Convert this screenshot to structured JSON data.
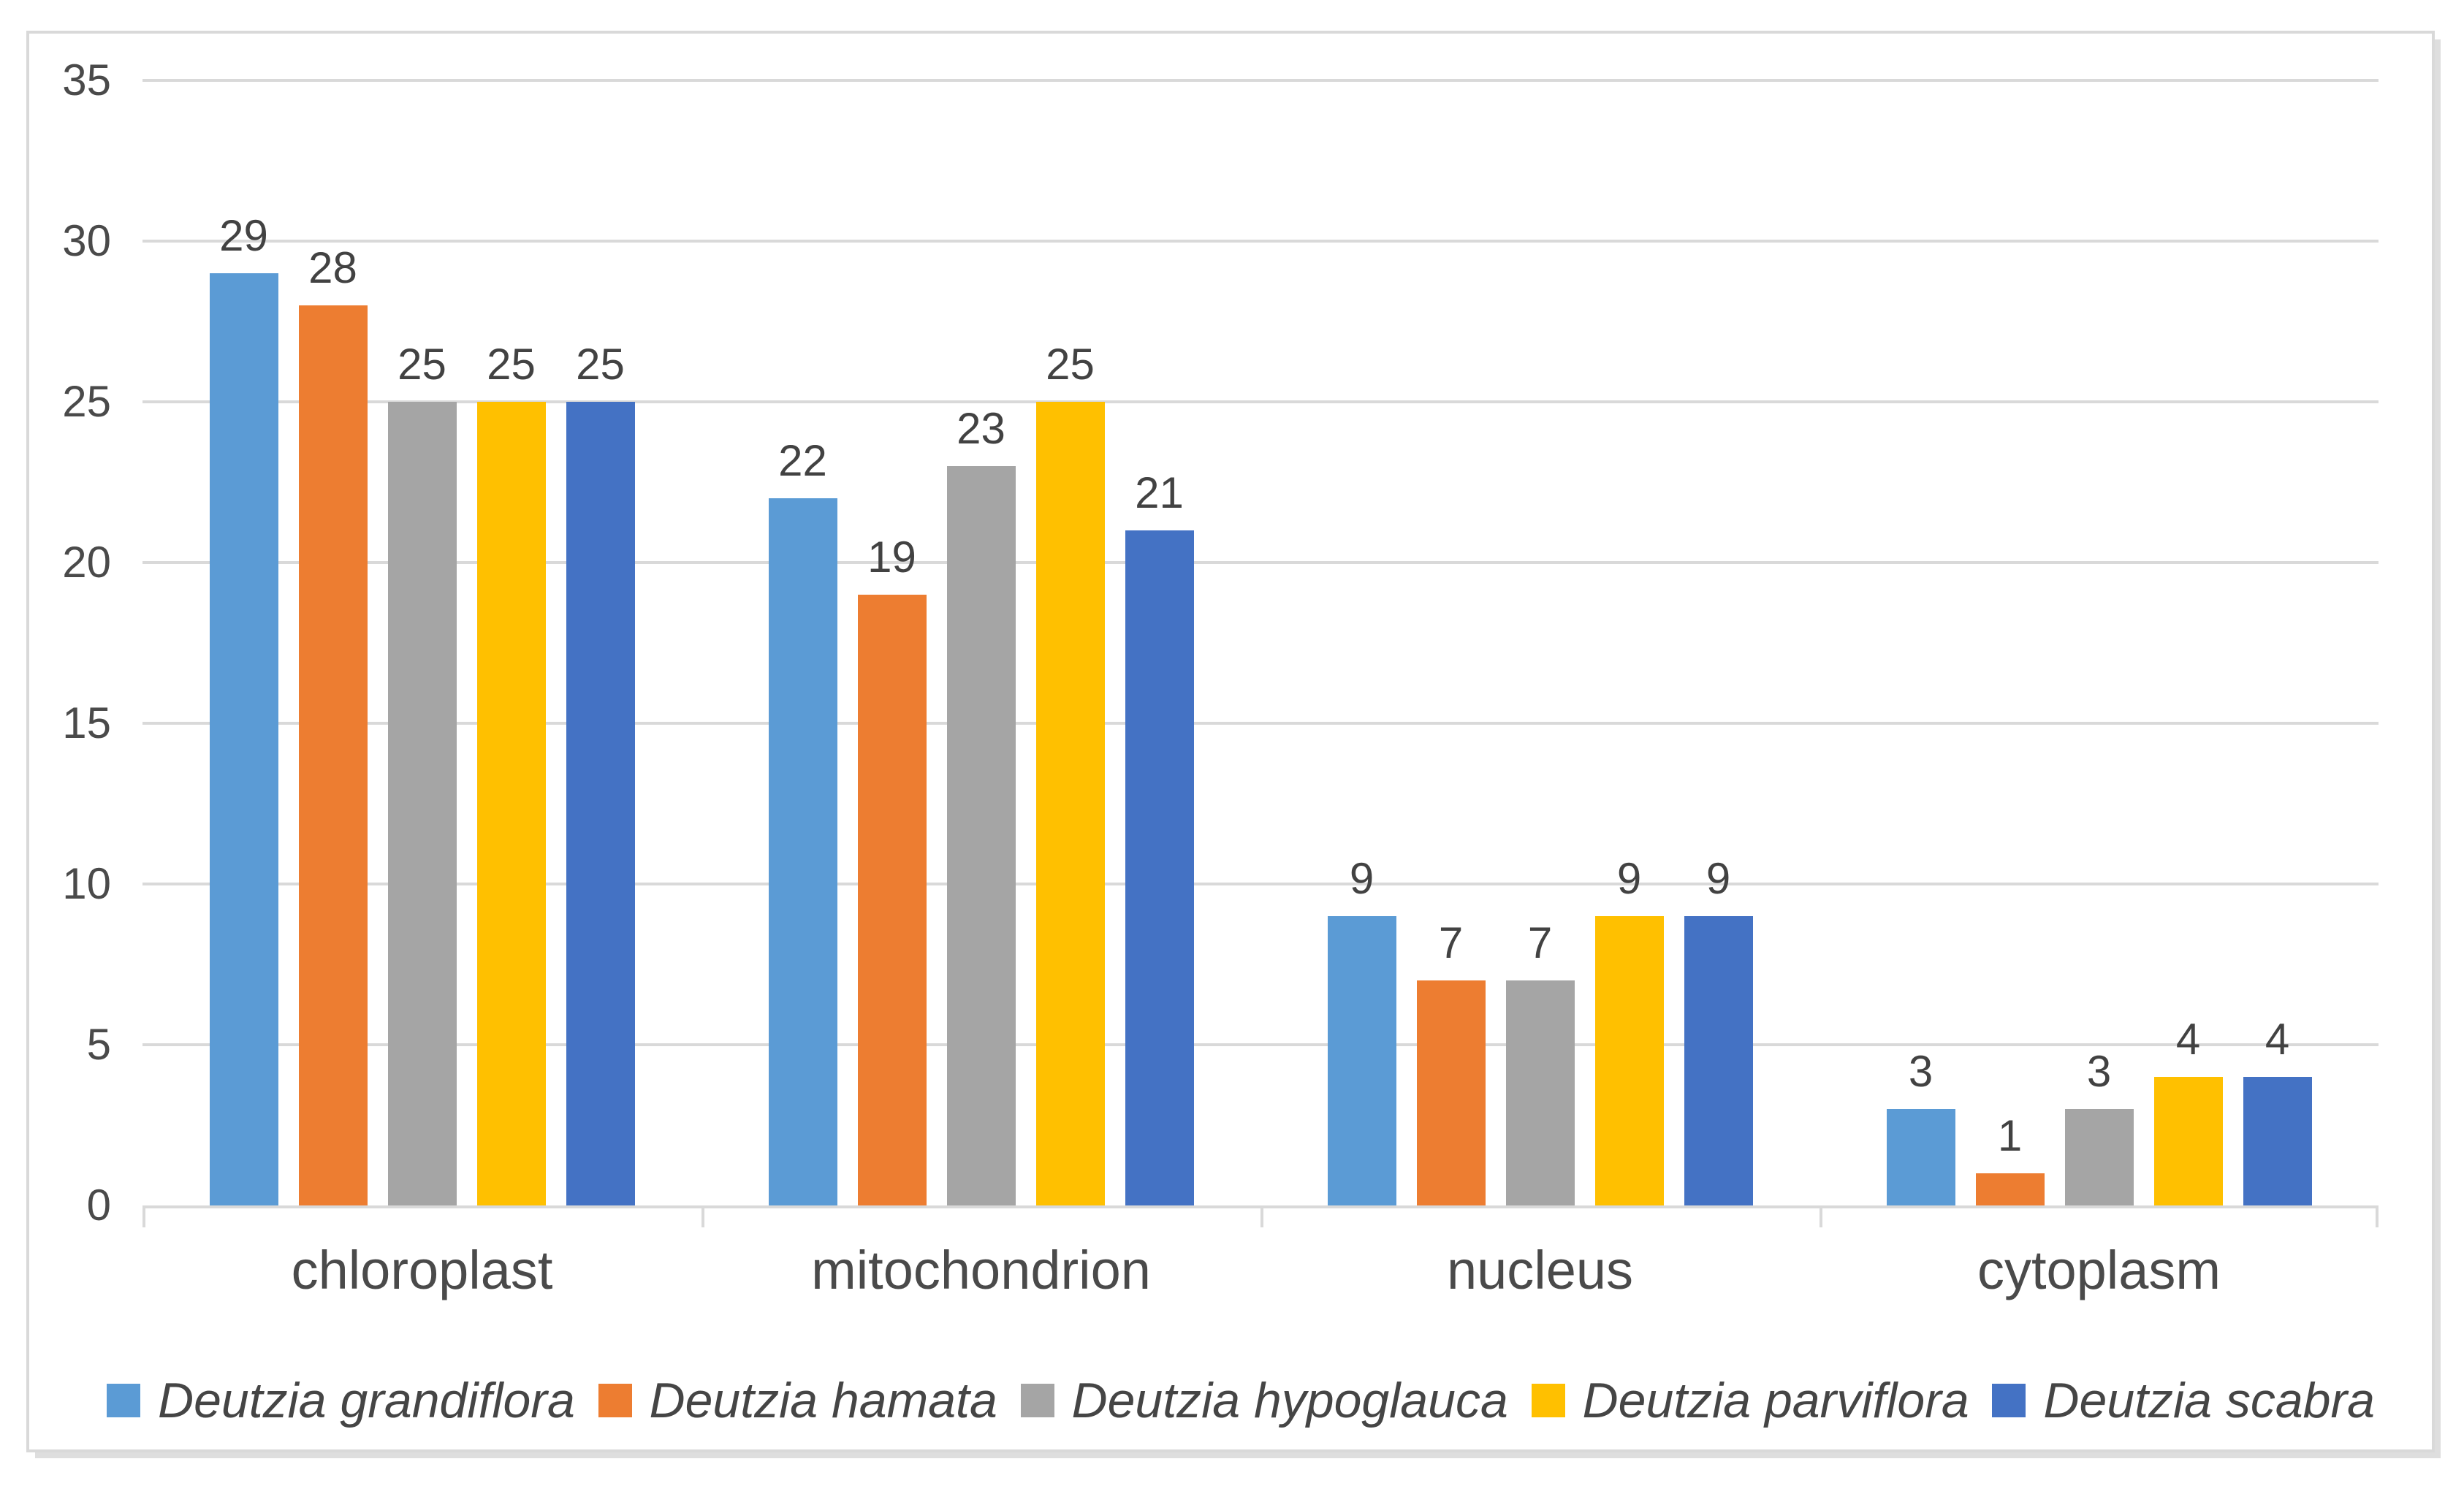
{
  "chart_data": {
    "type": "bar",
    "title": "",
    "xlabel": "",
    "ylabel": "",
    "categories": [
      "chloroplast",
      "mitochondrion",
      "nucleus",
      "cytoplasm"
    ],
    "series": [
      {
        "name": "Deutzia grandiflora",
        "color": "#5B9BD5",
        "values": [
          29,
          22,
          9,
          3
        ]
      },
      {
        "name": "Deutzia hamata",
        "color": "#ED7D31",
        "values": [
          28,
          19,
          7,
          1
        ]
      },
      {
        "name": "Deutzia hypoglauca",
        "color": "#A5A5A5",
        "values": [
          25,
          23,
          7,
          3
        ]
      },
      {
        "name": "Deutzia parviflora",
        "color": "#FFC000",
        "values": [
          25,
          25,
          9,
          4
        ]
      },
      {
        "name": "Deutzia scabra",
        "color": "#4472C4",
        "values": [
          25,
          21,
          9,
          4
        ]
      }
    ],
    "ylim": [
      0,
      35
    ],
    "yticks": [
      0,
      5,
      10,
      15,
      20,
      25,
      30,
      35
    ],
    "grid": true,
    "data_labels": true,
    "legend_position": "bottom",
    "legend_style": "italic"
  },
  "style": {
    "grid_color": "#d9d9d9",
    "frame_border_color": "#d9d9d9",
    "tick_label_color": "#4a4a4a",
    "data_label_color": "#424242",
    "category_label_color": "#4a4a4a",
    "legend_text_color": "#454545",
    "background": "#ffffff"
  }
}
